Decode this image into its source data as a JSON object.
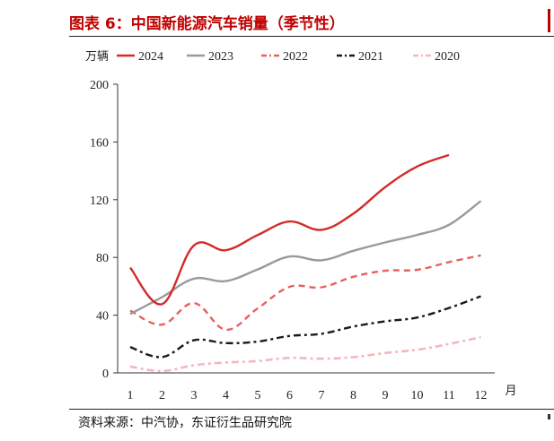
{
  "figure": {
    "title": "图表 6：中国新能源汽车销量（季节性）",
    "source": "资料来源：中汽协，东证衍生品研究院"
  },
  "colors": {
    "title": "#c00000",
    "s2024": "#d42a2a",
    "s2023": "#9a9a9a",
    "s2022": "#e86060",
    "s2021": "#1a1a1a",
    "s2020": "#f4b8bc"
  },
  "chart_data": {
    "type": "line",
    "title": "",
    "ylabel": "万辆",
    "xlabel": "月",
    "ylim": [
      0,
      200
    ],
    "yticks": [
      0,
      40,
      80,
      120,
      160,
      200
    ],
    "x": [
      1,
      2,
      3,
      4,
      5,
      6,
      7,
      8,
      9,
      10,
      11,
      12
    ],
    "legend_position": "top",
    "series": [
      {
        "name": "2024",
        "style": "solid",
        "values": [
          72.9,
          47.7,
          88.3,
          85,
          95.5,
          104.9,
          99.1,
          110.3,
          128.7,
          143,
          151,
          null
        ]
      },
      {
        "name": "2023",
        "style": "solid",
        "values": [
          40.8,
          52.5,
          65.3,
          63.6,
          71.7,
          80.6,
          78,
          84.6,
          90.4,
          95.6,
          102.6,
          119.1
        ]
      },
      {
        "name": "2022",
        "style": "dashed",
        "values": [
          43.1,
          33.4,
          48.4,
          29.9,
          44.7,
          59.6,
          59.3,
          66.6,
          70.8,
          71.4,
          76.8,
          81.4
        ]
      },
      {
        "name": "2021",
        "style": "dashdot",
        "values": [
          17.9,
          11,
          22.6,
          20.6,
          21.7,
          25.6,
          27.1,
          32.1,
          35.7,
          38.3,
          45,
          53.1
        ]
      },
      {
        "name": "2020",
        "style": "dashdot",
        "values": [
          4.4,
          1.3,
          5.3,
          7.2,
          8.2,
          10.4,
          9.8,
          10.9,
          13.8,
          16,
          20,
          24.8
        ]
      }
    ]
  }
}
